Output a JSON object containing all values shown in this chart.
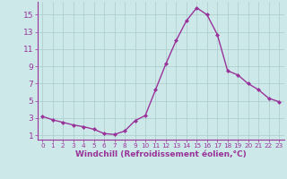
{
  "x": [
    0,
    1,
    2,
    3,
    4,
    5,
    6,
    7,
    8,
    9,
    10,
    11,
    12,
    13,
    14,
    15,
    16,
    17,
    18,
    19,
    20,
    21,
    22,
    23
  ],
  "y": [
    3.2,
    2.8,
    2.5,
    2.2,
    2.0,
    1.7,
    1.2,
    1.1,
    1.5,
    2.7,
    3.3,
    6.3,
    9.3,
    12.0,
    14.3,
    15.8,
    15.0,
    12.7,
    8.5,
    8.0,
    7.0,
    6.3,
    5.3,
    4.9
  ],
  "line_color": "#993399",
  "marker": "D",
  "markersize": 2.0,
  "linewidth": 1.0,
  "xlabel": "Windchill (Refroidissement éolien,°C)",
  "xlabel_fontsize": 6.5,
  "ylabel_ticks": [
    1,
    3,
    5,
    7,
    9,
    11,
    13,
    15
  ],
  "ytick_fontsize": 6.5,
  "xtick_labels": [
    "0",
    "1",
    "2",
    "3",
    "4",
    "5",
    "6",
    "7",
    "8",
    "9",
    "10",
    "11",
    "12",
    "13",
    "14",
    "15",
    "16",
    "17",
    "18",
    "19",
    "20",
    "21",
    "22",
    "23"
  ],
  "xtick_fontsize": 5.2,
  "xlim": [
    -0.5,
    23.5
  ],
  "ylim": [
    0.5,
    16.5
  ],
  "bg_color": "#cce8e8",
  "grid_color": "#aacccc",
  "line_spine_color": "#993399",
  "label_color": "#993399"
}
